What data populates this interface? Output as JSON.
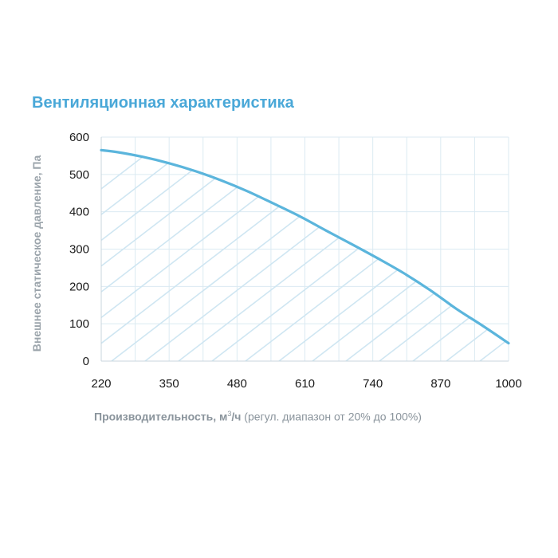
{
  "chart_data": {
    "type": "line",
    "title": "Вентиляционная характеристика",
    "xlabel_bold": "Производительность, м",
    "xlabel_sup": "3",
    "xlabel_unit": "/ч",
    "xlabel_note": " (регул. диапазон от 20% до 100%)",
    "ylabel": "Внешнее статическое давление, Па",
    "xlim": [
      220,
      1000
    ],
    "ylim": [
      0,
      600
    ],
    "x_ticks": [
      220,
      350,
      480,
      610,
      740,
      870,
      1000
    ],
    "y_ticks": [
      0,
      100,
      200,
      300,
      400,
      500,
      600
    ],
    "grid": true,
    "area_fill": "hatched",
    "series": [
      {
        "x": [
          220,
          250,
          300,
          350,
          400,
          450,
          500,
          550,
          600,
          650,
          700,
          750,
          800,
          850,
          900,
          950,
          1000
        ],
        "values": [
          565,
          560,
          547,
          530,
          509,
          484,
          455,
          422,
          388,
          350,
          313,
          275,
          235,
          190,
          140,
          95,
          48
        ]
      }
    ]
  },
  "colors": {
    "line": "#5bb5dc",
    "hatch": "#cfe6f2",
    "grid": "#dbeaf2",
    "title": "#4aa8d8",
    "axis_text": "#1a1a1a",
    "label_text": "#8a949c"
  }
}
